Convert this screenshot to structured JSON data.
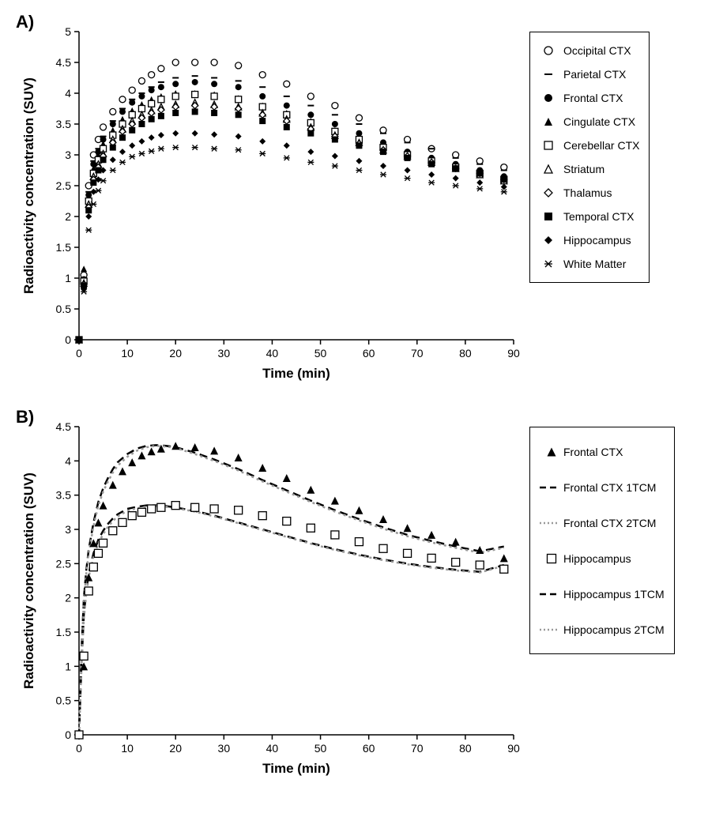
{
  "panelA": {
    "label": "A)",
    "type": "scatter",
    "xlabel": "Time (min)",
    "ylabel": "Radioactivity concentration (SUV)",
    "label_fontsize": 17,
    "label_fontweight": "bold",
    "tick_fontsize": 14,
    "xlim": [
      0,
      90
    ],
    "xtick_step": 10,
    "ylim": [
      0,
      5
    ],
    "ytick_step": 0.5,
    "background_color": "#ffffff",
    "axis_color": "#000000",
    "marker_size": 8,
    "x_values": [
      0,
      1,
      2,
      3,
      4,
      5,
      7,
      9,
      11,
      13,
      15,
      17,
      20,
      24,
      28,
      33,
      38,
      43,
      48,
      53,
      58,
      63,
      68,
      73,
      78,
      83,
      88
    ],
    "series": [
      {
        "name": "Occipital CTX",
        "marker": "circle_open",
        "color": "#000000",
        "y": [
          0,
          1.05,
          2.5,
          3.0,
          3.25,
          3.45,
          3.7,
          3.9,
          4.05,
          4.2,
          4.3,
          4.4,
          4.5,
          4.5,
          4.5,
          4.45,
          4.3,
          4.15,
          3.95,
          3.8,
          3.6,
          3.4,
          3.25,
          3.1,
          3.0,
          2.9,
          2.8
        ]
      },
      {
        "name": "Parietal CTX",
        "marker": "dash",
        "color": "#000000",
        "y": [
          0,
          1.0,
          2.4,
          2.9,
          3.1,
          3.3,
          3.55,
          3.75,
          3.9,
          4.0,
          4.1,
          4.18,
          4.25,
          4.28,
          4.25,
          4.2,
          4.1,
          3.95,
          3.8,
          3.65,
          3.5,
          3.35,
          3.2,
          3.1,
          2.95,
          2.85,
          2.75
        ]
      },
      {
        "name": "Frontal CTX",
        "marker": "circle_filled",
        "color": "#000000",
        "y": [
          0,
          0.98,
          2.35,
          2.85,
          3.05,
          3.25,
          3.5,
          3.7,
          3.85,
          3.95,
          4.05,
          4.1,
          4.15,
          4.18,
          4.15,
          4.1,
          3.95,
          3.8,
          3.65,
          3.5,
          3.35,
          3.2,
          3.05,
          2.95,
          2.85,
          2.75,
          2.65
        ]
      },
      {
        "name": "Cingulate CTX",
        "marker": "triangle_filled",
        "color": "#000000",
        "y": [
          0,
          1.15,
          2.3,
          2.78,
          3.0,
          3.18,
          3.4,
          3.58,
          3.72,
          3.82,
          3.9,
          3.95,
          4.0,
          4.0,
          3.98,
          3.92,
          3.8,
          3.68,
          3.55,
          3.4,
          3.28,
          3.15,
          3.02,
          2.92,
          2.82,
          2.72,
          2.62
        ]
      },
      {
        "name": "Cerebellar CTX",
        "marker": "square_open",
        "color": "#000000",
        "y": [
          0,
          0.95,
          2.25,
          2.7,
          2.92,
          3.1,
          3.32,
          3.5,
          3.65,
          3.75,
          3.83,
          3.9,
          3.95,
          3.98,
          3.95,
          3.9,
          3.78,
          3.65,
          3.52,
          3.38,
          3.25,
          3.12,
          3.0,
          2.9,
          2.8,
          2.7,
          2.6
        ]
      },
      {
        "name": "Striatum",
        "marker": "triangle_open",
        "color": "#000000",
        "y": [
          0,
          0.92,
          2.2,
          2.65,
          2.85,
          3.02,
          3.25,
          3.42,
          3.55,
          3.65,
          3.72,
          3.78,
          3.82,
          3.85,
          3.82,
          3.78,
          3.68,
          3.58,
          3.45,
          3.32,
          3.2,
          3.08,
          2.98,
          2.88,
          2.78,
          2.68,
          2.58
        ]
      },
      {
        "name": "Thalamus",
        "marker": "diamond_open",
        "color": "#000000",
        "y": [
          0,
          0.9,
          2.15,
          2.6,
          2.8,
          2.98,
          3.2,
          3.38,
          3.5,
          3.6,
          3.68,
          3.73,
          3.78,
          3.8,
          3.78,
          3.75,
          3.65,
          3.55,
          3.42,
          3.3,
          3.18,
          3.08,
          2.98,
          2.88,
          2.78,
          2.7,
          2.6
        ]
      },
      {
        "name": "Temporal CTX",
        "marker": "square_filled",
        "color": "#000000",
        "y": [
          0,
          0.88,
          2.1,
          2.55,
          2.75,
          2.92,
          3.12,
          3.28,
          3.4,
          3.5,
          3.58,
          3.63,
          3.68,
          3.7,
          3.68,
          3.65,
          3.55,
          3.45,
          3.35,
          3.25,
          3.15,
          3.05,
          2.95,
          2.85,
          2.78,
          2.7,
          2.6
        ]
      },
      {
        "name": "Hippocampus",
        "marker": "diamond_filled",
        "color": "#000000",
        "y": [
          0,
          0.82,
          2.0,
          2.4,
          2.6,
          2.75,
          2.92,
          3.05,
          3.15,
          3.22,
          3.28,
          3.32,
          3.35,
          3.35,
          3.33,
          3.3,
          3.22,
          3.15,
          3.05,
          2.98,
          2.9,
          2.82,
          2.75,
          2.68,
          2.62,
          2.55,
          2.48
        ]
      },
      {
        "name": "White Matter",
        "marker": "asterisk",
        "color": "#000000",
        "y": [
          0,
          0.78,
          1.78,
          2.2,
          2.42,
          2.58,
          2.75,
          2.88,
          2.97,
          3.02,
          3.06,
          3.1,
          3.12,
          3.12,
          3.1,
          3.08,
          3.02,
          2.95,
          2.88,
          2.82,
          2.75,
          2.68,
          2.62,
          2.55,
          2.5,
          2.45,
          2.4
        ]
      }
    ]
  },
  "panelB": {
    "label": "B)",
    "type": "scatter+line",
    "xlabel": "Time (min)",
    "ylabel": "Radioactivity concentration (SUV)",
    "label_fontsize": 17,
    "label_fontweight": "bold",
    "tick_fontsize": 14,
    "xlim": [
      0,
      90
    ],
    "xtick_step": 10,
    "ylim": [
      0,
      4.5
    ],
    "ytick_step": 0.5,
    "background_color": "#ffffff",
    "axis_color": "#000000",
    "marker_size": 10,
    "x_values": [
      0,
      1,
      2,
      3,
      4,
      5,
      7,
      9,
      11,
      13,
      15,
      17,
      20,
      24,
      28,
      33,
      38,
      43,
      48,
      53,
      58,
      63,
      68,
      73,
      78,
      83,
      88
    ],
    "scatter_series": [
      {
        "name": "Frontal CTX",
        "marker": "triangle_filled",
        "color": "#000000",
        "y": [
          0,
          1.0,
          2.3,
          2.8,
          3.1,
          3.35,
          3.65,
          3.85,
          3.98,
          4.08,
          4.14,
          4.18,
          4.22,
          4.2,
          4.15,
          4.05,
          3.9,
          3.75,
          3.58,
          3.42,
          3.28,
          3.15,
          3.02,
          2.92,
          2.82,
          2.7,
          2.58
        ]
      },
      {
        "name": "Hippocampus",
        "marker": "square_open",
        "color": "#000000",
        "y": [
          0,
          1.15,
          2.1,
          2.45,
          2.65,
          2.8,
          2.98,
          3.1,
          3.2,
          3.25,
          3.3,
          3.32,
          3.35,
          3.32,
          3.3,
          3.28,
          3.2,
          3.12,
          3.02,
          2.92,
          2.82,
          2.72,
          2.65,
          2.58,
          2.52,
          2.48,
          2.42
        ]
      }
    ],
    "curve_x": [
      0,
      0.5,
      1,
      1.5,
      2,
      3,
      4,
      5,
      6,
      7,
      8,
      10,
      12,
      14,
      16,
      18,
      20,
      24,
      28,
      33,
      38,
      43,
      48,
      53,
      58,
      63,
      68,
      73,
      78,
      83,
      88
    ],
    "curves": [
      {
        "name": "Frontal CTX  1TCM",
        "style": "dashed",
        "width": 2.5,
        "color": "#000000",
        "y": [
          0,
          1.2,
          2.0,
          2.4,
          2.7,
          3.1,
          3.4,
          3.6,
          3.75,
          3.88,
          3.98,
          4.1,
          4.18,
          4.22,
          4.23,
          4.22,
          4.2,
          4.12,
          4.02,
          3.88,
          3.72,
          3.57,
          3.42,
          3.28,
          3.15,
          3.03,
          2.92,
          2.83,
          2.75,
          2.68,
          2.75
        ]
      },
      {
        "name": "Frontal CTX 2TCM",
        "style": "dotted",
        "width": 2.5,
        "color": "#999999",
        "y": [
          0,
          1.15,
          1.95,
          2.35,
          2.65,
          3.05,
          3.35,
          3.55,
          3.7,
          3.83,
          3.93,
          4.06,
          4.15,
          4.2,
          4.22,
          4.21,
          4.19,
          4.1,
          4.0,
          3.86,
          3.7,
          3.55,
          3.4,
          3.26,
          3.13,
          3.01,
          2.9,
          2.81,
          2.73,
          2.66,
          2.73
        ]
      },
      {
        "name": "Hippocampus 1TCM",
        "style": "dashed",
        "width": 2.5,
        "color": "#000000",
        "y": [
          0,
          1.0,
          1.75,
          2.1,
          2.35,
          2.65,
          2.85,
          2.98,
          3.08,
          3.16,
          3.22,
          3.3,
          3.33,
          3.35,
          3.35,
          3.34,
          3.32,
          3.27,
          3.2,
          3.1,
          3.0,
          2.9,
          2.8,
          2.71,
          2.63,
          2.56,
          2.5,
          2.45,
          2.41,
          2.38,
          2.48
        ]
      },
      {
        "name": "Hippocampus 2TCM",
        "style": "dotted",
        "width": 2.5,
        "color": "#999999",
        "y": [
          0,
          0.95,
          1.7,
          2.05,
          2.3,
          2.6,
          2.8,
          2.93,
          3.04,
          3.12,
          3.19,
          3.27,
          3.31,
          3.33,
          3.34,
          3.33,
          3.31,
          3.26,
          3.19,
          3.09,
          2.99,
          2.89,
          2.79,
          2.7,
          2.62,
          2.55,
          2.49,
          2.44,
          2.4,
          2.37,
          2.47
        ]
      }
    ],
    "legend_items": [
      {
        "name": "Frontal CTX",
        "marker": "triangle_filled",
        "color": "#000000"
      },
      {
        "name": "Frontal CTX  1TCM",
        "style": "dashed",
        "width": 2.5,
        "color": "#000000"
      },
      {
        "name": "Frontal CTX 2TCM",
        "style": "dotted",
        "width": 2.5,
        "color": "#999999"
      },
      {
        "name": "Hippocampus",
        "marker": "square_open",
        "color": "#000000"
      },
      {
        "name": "Hippocampus 1TCM",
        "style": "dashed",
        "width": 2.5,
        "color": "#000000"
      },
      {
        "name": "Hippocampus 2TCM",
        "style": "dotted",
        "width": 2.5,
        "color": "#999999"
      }
    ]
  }
}
